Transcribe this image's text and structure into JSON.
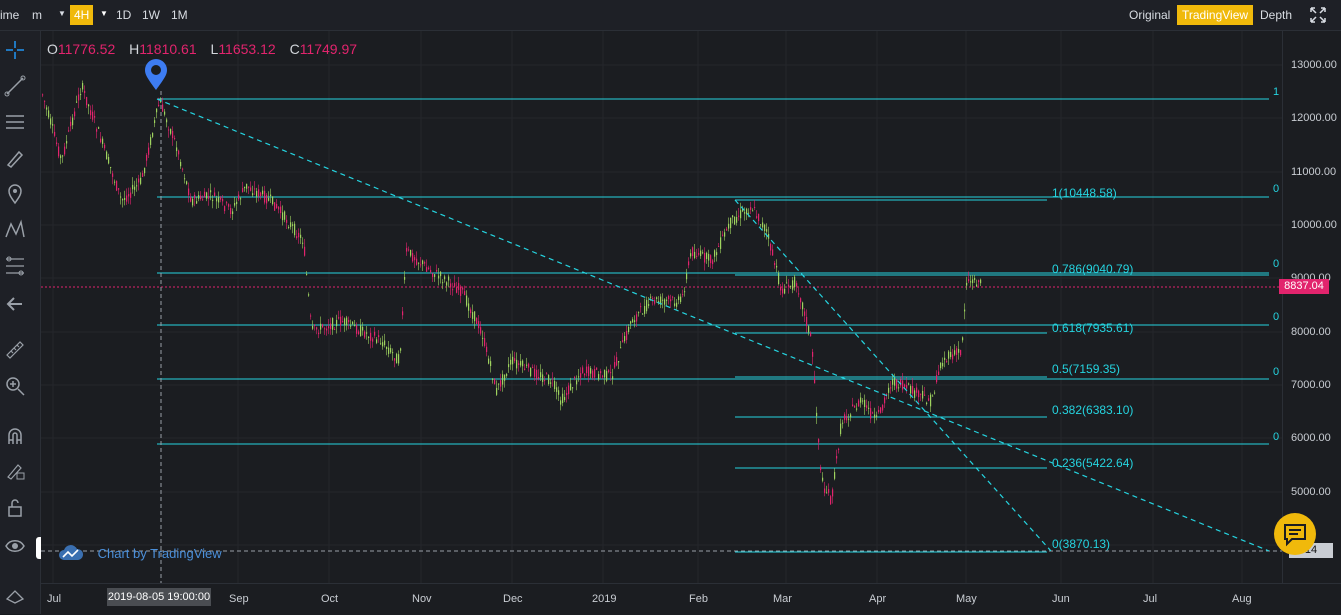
{
  "toolbar": {
    "time_label": "ime",
    "unit_label": "m",
    "intervals": [
      "4H",
      "1D",
      "1W",
      "1M"
    ],
    "active_interval": "4H",
    "views": [
      "Original",
      "TradingView",
      "Depth"
    ],
    "active_view": "TradingView"
  },
  "ohlc": {
    "open_label": "O",
    "open": "11776.52",
    "high_label": "H",
    "high": "11810.61",
    "low_label": "L",
    "low": "11653.12",
    "close_label": "C",
    "close": "11749.97"
  },
  "price_axis": [
    "13000.00",
    "12000.00",
    "11000.00",
    "10000.00",
    "9000.00",
    "8000.00",
    "7000.00",
    "6000.00",
    "5000.00"
  ],
  "current_price": "8837.04",
  "lower_price_tag": "14",
  "time_axis": [
    "Jul",
    "Sep",
    "Oct",
    "Nov",
    "Dec",
    "2019",
    "Feb",
    "Mar",
    "Apr",
    "May",
    "Jun",
    "Jul",
    "Aug"
  ],
  "crosshair_date": "2019-08-05 19:00:00",
  "fib_levels": [
    {
      "label": "1(10448.58)"
    },
    {
      "label": "0.786(9040.79)"
    },
    {
      "label": "0.618(7935.61)"
    },
    {
      "label": "0.5(7159.35)"
    },
    {
      "label": "0.382(6383.10)"
    },
    {
      "label": "0.236(5422.64)"
    },
    {
      "label": "0(3870.13)"
    }
  ],
  "fib_edge_labels": [
    "1",
    "0",
    "0",
    "0",
    "0",
    "0"
  ],
  "watermark": "Chart by TradingView",
  "colors": {
    "accent": "#f0b90b",
    "fib": "#25d4e0",
    "down": "#e2246d",
    "up": "#9fd35f",
    "pin": "#3d7cf2"
  }
}
